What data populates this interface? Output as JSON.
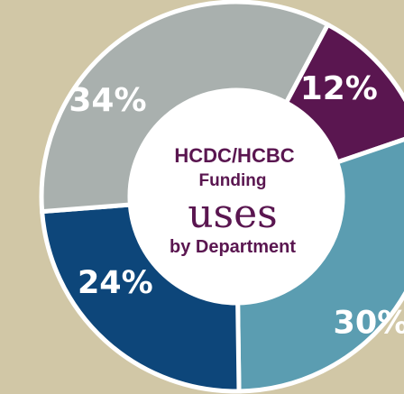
{
  "chart_data": {
    "type": "pie",
    "variant": "donut",
    "title_lines": [
      "HCDC/HCBC",
      "Funding",
      "uses",
      "by Department"
    ],
    "slices": [
      {
        "label": "12%",
        "value": 12,
        "color": "#5a1650"
      },
      {
        "label": "30%",
        "value": 30,
        "color": "#5b9db1"
      },
      {
        "label": "24%",
        "value": 24,
        "color": "#0d467a"
      },
      {
        "label": "34%",
        "value": 34,
        "color": "#a9b0ae"
      }
    ],
    "background": "#d1c7a6",
    "separator_color": "#ffffff",
    "center_color": "#ffffff"
  }
}
